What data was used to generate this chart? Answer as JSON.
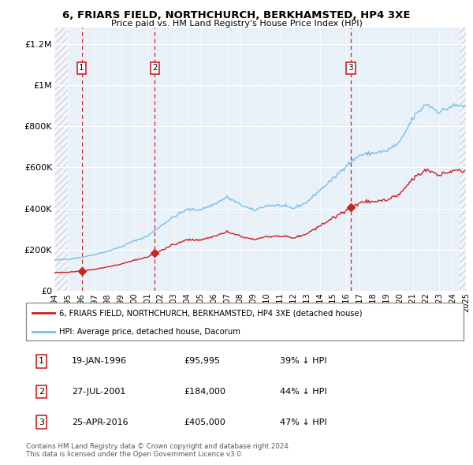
{
  "title1": "6, FRIARS FIELD, NORTHCHURCH, BERKHAMSTED, HP4 3XE",
  "title2": "Price paid vs. HM Land Registry's House Price Index (HPI)",
  "ylabel_ticks": [
    "£0",
    "£200K",
    "£400K",
    "£600K",
    "£800K",
    "£1M",
    "£1.2M"
  ],
  "ytick_vals": [
    0,
    200000,
    400000,
    600000,
    800000,
    1000000,
    1200000
  ],
  "ylim": [
    0,
    1280000
  ],
  "xlim_start": 1994.0,
  "xlim_end": 2025.0,
  "hpi_color": "#7bbfea",
  "price_color": "#cc2222",
  "sale_color": "#cc2222",
  "dashed_color": "#cc2222",
  "background_plot": "#e8f0f8",
  "legend_label1": "6, FRIARS FIELD, NORTHCHURCH, BERKHAMSTED, HP4 3XE (detached house)",
  "legend_label2": "HPI: Average price, detached house, Dacorum",
  "sale_transactions": [
    {
      "num": 1,
      "year": 1996.05,
      "price": 95995,
      "label": "1"
    },
    {
      "num": 2,
      "year": 2001.57,
      "price": 184000,
      "label": "2"
    },
    {
      "num": 3,
      "year": 2016.32,
      "price": 405000,
      "label": "3"
    }
  ],
  "table_rows": [
    {
      "num": "1",
      "date": "19-JAN-1996",
      "price": "£95,995",
      "pct": "39% ↓ HPI"
    },
    {
      "num": "2",
      "date": "27-JUL-2001",
      "price": "£184,000",
      "pct": "44% ↓ HPI"
    },
    {
      "num": "3",
      "date": "25-APR-2016",
      "price": "£405,000",
      "pct": "47% ↓ HPI"
    }
  ],
  "footnote1": "Contains HM Land Registry data © Crown copyright and database right 2024.",
  "footnote2": "This data is licensed under the Open Government Licence v3.0."
}
